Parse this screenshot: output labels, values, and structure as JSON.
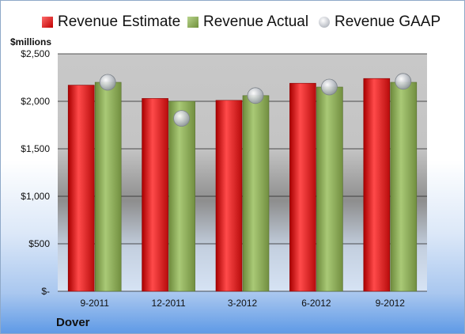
{
  "chart_data": {
    "type": "bar",
    "company": "Dover",
    "unit_label": "$millions",
    "categories": [
      "9-2011",
      "12-2011",
      "3-2012",
      "6-2012",
      "9-2012"
    ],
    "series": [
      {
        "name": "Revenue Estimate",
        "kind": "bar",
        "color": "#d01818",
        "values": [
          2170,
          2030,
          2010,
          2190,
          2240
        ]
      },
      {
        "name": "Revenue Actual",
        "kind": "bar",
        "color": "#8aab52",
        "values": [
          2200,
          2000,
          2060,
          2150,
          2200
        ]
      },
      {
        "name": "Revenue GAAP",
        "kind": "marker",
        "color": "#b8bcc4",
        "values": [
          2200,
          1820,
          2060,
          2150,
          2210
        ]
      }
    ],
    "ylim": [
      0,
      2500
    ],
    "yticks": [
      0,
      500,
      1000,
      1500,
      2000,
      2500
    ],
    "ytick_labels": [
      "$-",
      "$500",
      "$1,000",
      "$1,500",
      "$2,000",
      "$2,500"
    ],
    "grid": true,
    "legend_position": "top"
  }
}
